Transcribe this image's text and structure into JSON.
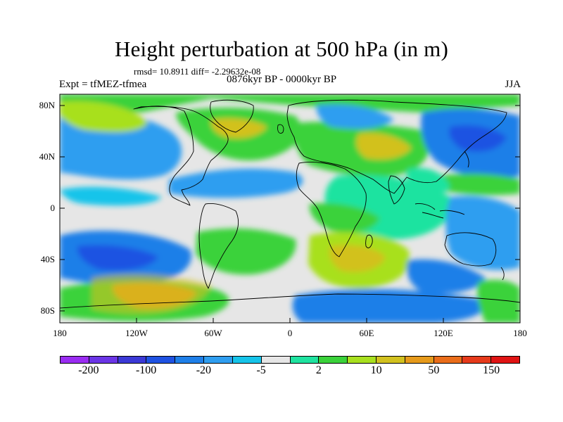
{
  "title": "Height perturbation at 500 hPa (in m)",
  "stats": "rmsd= 10.8911 diff= -2.29632e-08",
  "experiment": "Expt = tfMEZ-tfmea",
  "period": "0876kyr BP - 0000kyr BP",
  "season": "JJA",
  "lat_ticks": [
    "80N",
    "40N",
    "0",
    "40S",
    "80S"
  ],
  "lon_ticks": [
    "180",
    "120W",
    "60W",
    "0",
    "60E",
    "120E",
    "180"
  ],
  "colorbar": {
    "colors": [
      "#9a2cf2",
      "#6b35e6",
      "#3b39d6",
      "#1f52e2",
      "#1f7fe8",
      "#2f9ef0",
      "#16c4ea",
      "#e6e6e6",
      "#1fe3a0",
      "#3ad23a",
      "#a8e01f",
      "#d2c11f",
      "#e69a1b",
      "#ea6d1a",
      "#e63a1b",
      "#e01414"
    ],
    "labels": [
      "-200",
      "-100",
      "-20",
      "-5",
      "2",
      "10",
      "50",
      "150"
    ]
  },
  "colors": {
    "neutral": "#e6e6e6",
    "weak_pos": "#1fe3a0",
    "pos": "#3ad23a",
    "mid_pos": "#a8e01f",
    "strong_pos": "#d2c11f",
    "very_strong_pos": "#e69a1b",
    "weak_neg": "#16c4ea",
    "neg": "#2f9ef0",
    "mid_neg": "#1f7fe8",
    "strong_neg": "#1f52e2"
  }
}
